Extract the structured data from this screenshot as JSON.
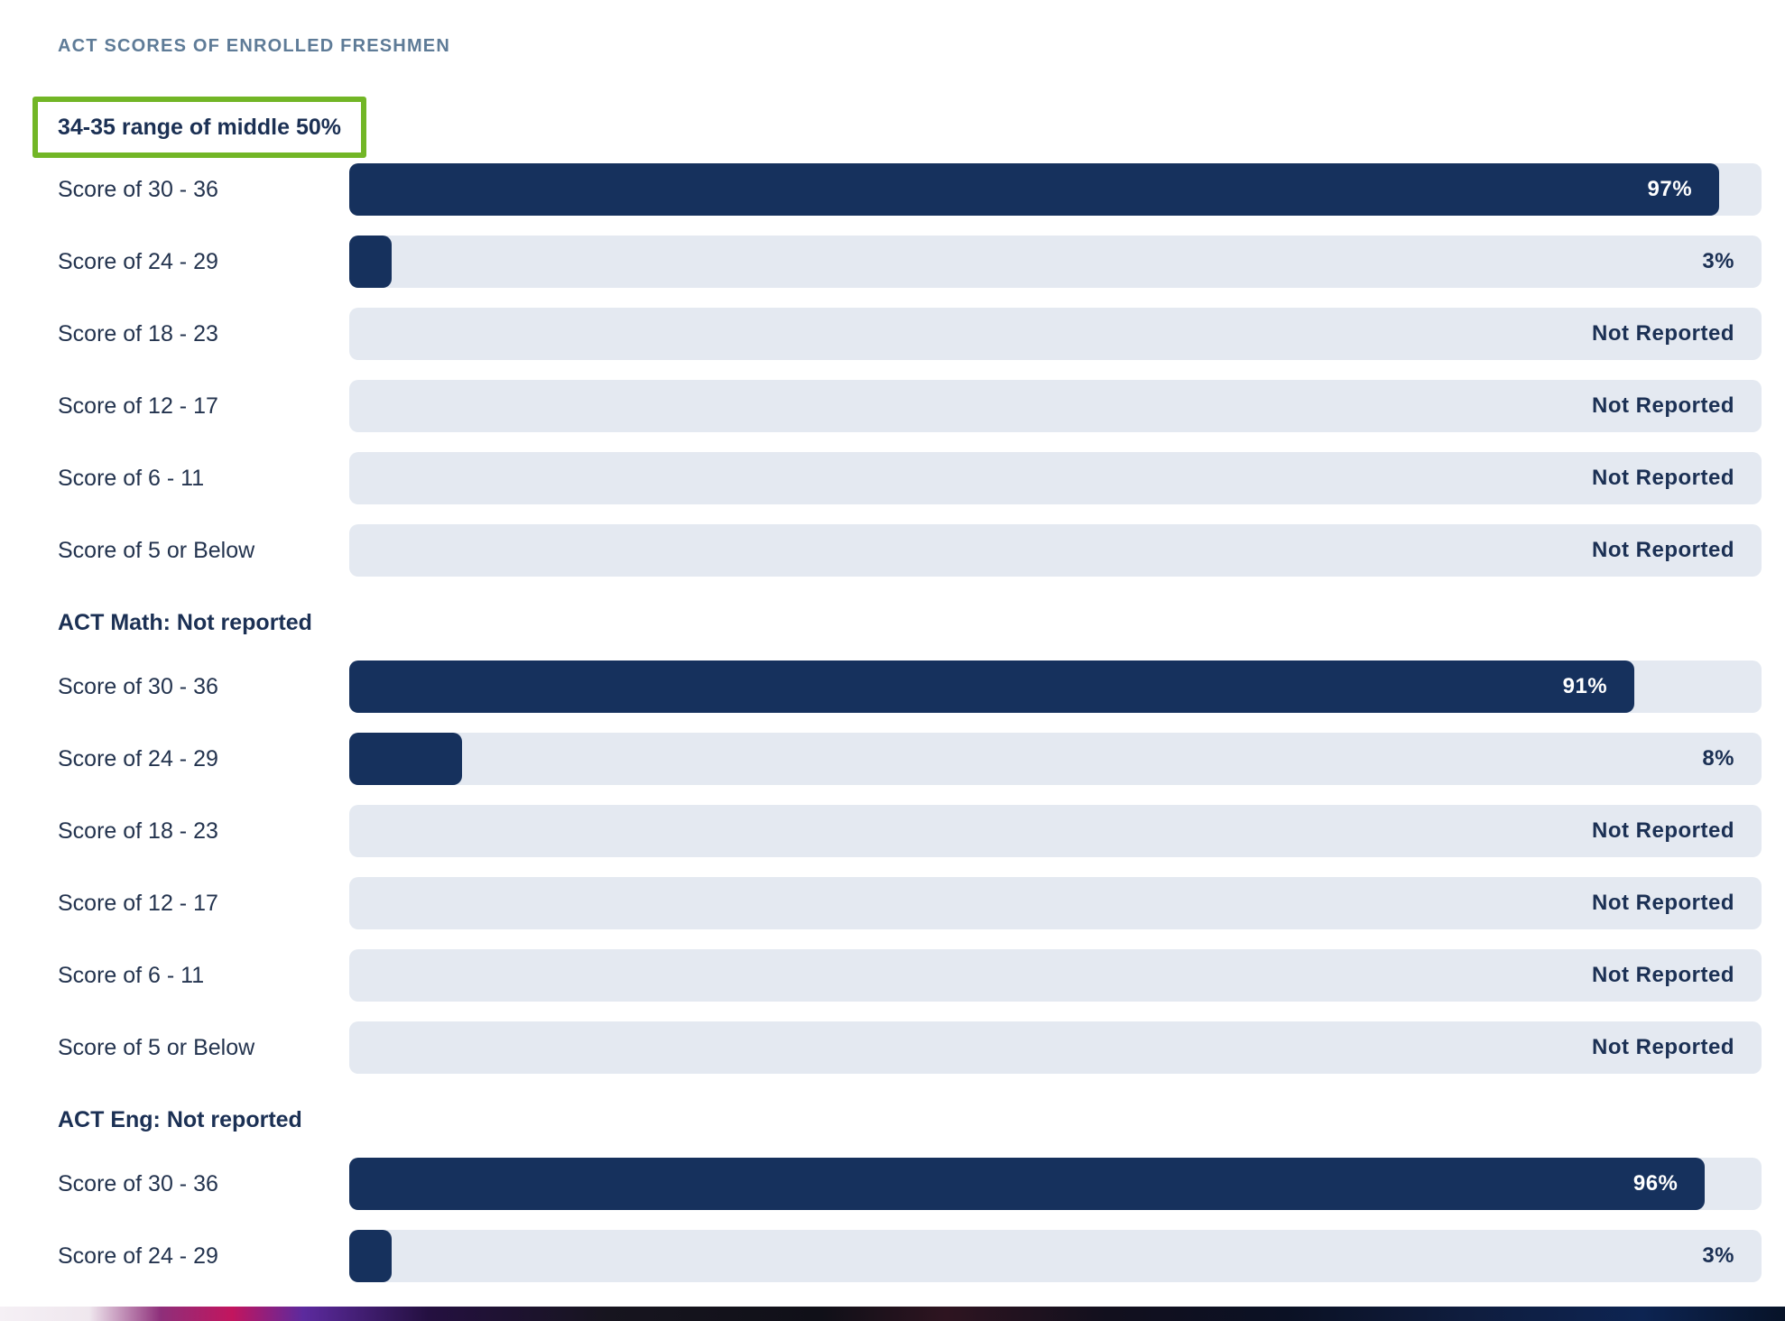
{
  "page": {
    "title": "ACT SCORES OF ENROLLED FRESHMEN"
  },
  "colors": {
    "bar_fill": "#16315d",
    "bar_track": "#e4e9f1",
    "highlight_box_green": "#72b626",
    "title_slate": "#5e7b97",
    "text_navy": "#1b3054"
  },
  "chart_data": [
    {
      "type": "bar",
      "orientation": "horizontal",
      "title": "34-35 range of middle 50%",
      "title_highlighted": true,
      "xlim": [
        0,
        100
      ],
      "categories": [
        "Score of 30 - 36",
        "Score of 24 - 29",
        "Score of 18 - 23",
        "Score of 12 - 17",
        "Score of 6 - 11",
        "Score of 5 or Below"
      ],
      "values": [
        97,
        3,
        null,
        null,
        null,
        null
      ],
      "value_labels": [
        "97%",
        "3%",
        "Not Reported",
        "Not Reported",
        "Not Reported",
        "Not Reported"
      ]
    },
    {
      "type": "bar",
      "orientation": "horizontal",
      "title": "ACT Math: Not reported",
      "title_highlighted": false,
      "xlim": [
        0,
        100
      ],
      "categories": [
        "Score of 30 - 36",
        "Score of 24 - 29",
        "Score of 18 - 23",
        "Score of 12 - 17",
        "Score of 6 - 11",
        "Score of 5 or Below"
      ],
      "values": [
        91,
        8,
        null,
        null,
        null,
        null
      ],
      "value_labels": [
        "91%",
        "8%",
        "Not Reported",
        "Not Reported",
        "Not Reported",
        "Not Reported"
      ]
    },
    {
      "type": "bar",
      "orientation": "horizontal",
      "title": "ACT Eng: Not reported",
      "title_highlighted": false,
      "xlim": [
        0,
        100
      ],
      "categories": [
        "Score of 30 - 36",
        "Score of 24 - 29"
      ],
      "values": [
        96,
        3
      ],
      "value_labels": [
        "96%",
        "3%"
      ]
    }
  ]
}
